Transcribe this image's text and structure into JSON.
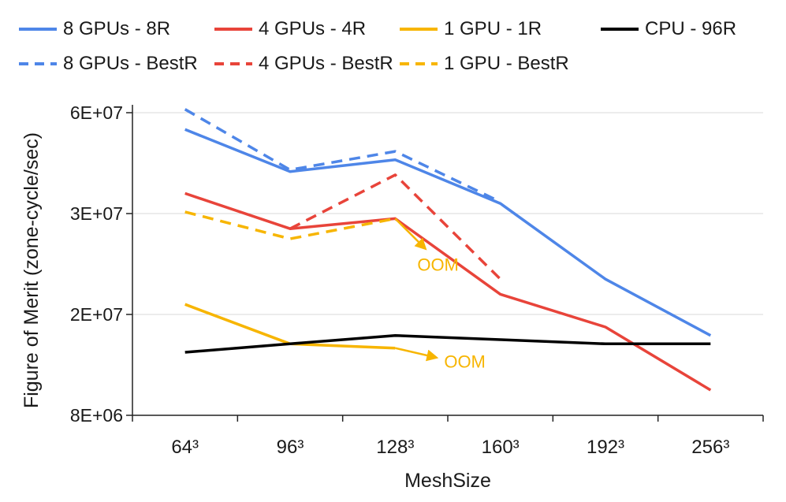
{
  "chart_data": {
    "type": "line",
    "title": "",
    "xlabel": "MeshSize",
    "ylabel": "Figure of Merit (zone-cycle/sec)",
    "categories": [
      "64³",
      "96³",
      "128³",
      "160³",
      "192³",
      "256³"
    ],
    "y_ticks": [
      {
        "value": 8000000,
        "label": "8E+06"
      },
      {
        "value": 20000000,
        "label": "2E+07"
      },
      {
        "value": 30000000,
        "label": "3E+07"
      },
      {
        "value": 60000000,
        "label": "6E+07"
      }
    ],
    "ylim_display": [
      "8E+06",
      "6E+07"
    ],
    "grid": true,
    "legend_position": "top",
    "series": [
      {
        "name": "8 GPUs - 8R",
        "color": "#4E86E8",
        "dash": false,
        "values": [
          55000000,
          42500000,
          46000000,
          33000000,
          23500000,
          17500000
        ]
      },
      {
        "name": "4 GPUs - 4R",
        "color": "#E8443A",
        "dash": false,
        "values": [
          36000000,
          28500000,
          29500000,
          22000000,
          18500000,
          11000000
        ]
      },
      {
        "name": "1 GPU - 1R",
        "color": "#F7B500",
        "dash": false,
        "values": [
          21000000,
          16500000,
          16000000,
          null,
          null,
          null
        ]
      },
      {
        "name": "CPU - 96R",
        "color": "#000000",
        "dash": false,
        "values": [
          15500000,
          16500000,
          17500000,
          17000000,
          16500000,
          16500000
        ]
      },
      {
        "name": "8 GPUs - BestR",
        "color": "#4E86E8",
        "dash": true,
        "values": [
          61000000,
          43000000,
          48500000,
          33500000,
          null,
          null
        ]
      },
      {
        "name": "4 GPUs - BestR",
        "color": "#E8443A",
        "dash": true,
        "values": [
          null,
          28500000,
          41500000,
          23500000,
          null,
          null
        ]
      },
      {
        "name": "1 GPU - BestR",
        "color": "#F7B500",
        "dash": true,
        "values": [
          30500000,
          27500000,
          29500000,
          null,
          null,
          null
        ]
      }
    ],
    "annotations": [
      {
        "text": "OOM",
        "series": "1 GPU - BestR"
      },
      {
        "text": "OOM",
        "series": "1 GPU - 1R"
      }
    ]
  }
}
